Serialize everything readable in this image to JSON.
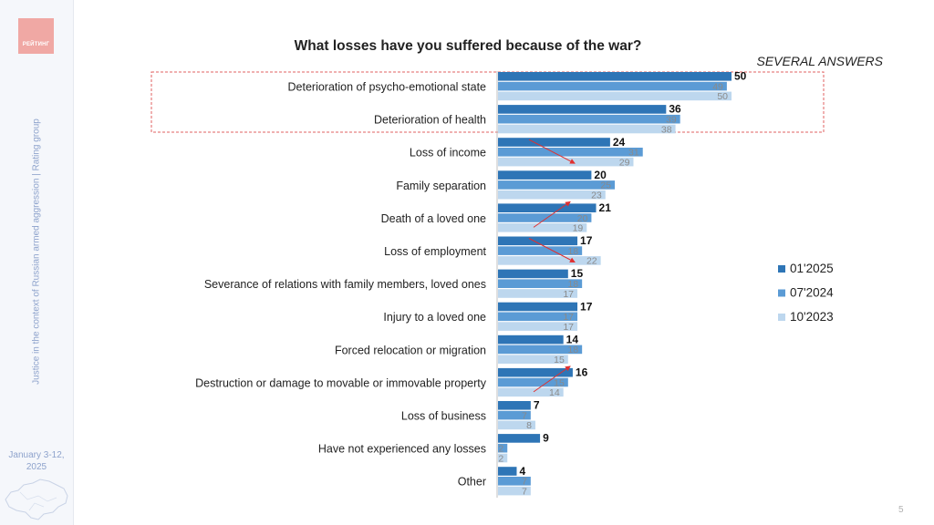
{
  "sidebar": {
    "logo_text": "РЕЙТИНГ",
    "vertical_caption": "Justice in the context of Russian armed aggression | Rating group",
    "date": "January 3-12, 2025",
    "map_icon": "ukraine-map-icon"
  },
  "page_number": "5",
  "colors": {
    "series_2025": "#2e75b6",
    "series_2024": "#5b9bd5",
    "series_2023": "#bdd7ee",
    "highlight_box": "#e06060",
    "arrow": "#e03030"
  },
  "chart_data": {
    "type": "bar",
    "orientation": "horizontal",
    "title": "What losses have you suffered because of the war?",
    "subtitle": "SEVERAL ANSWERS",
    "categories": [
      "Deterioration of psycho-emotional state",
      "Deterioration of health",
      "Loss of income",
      "Family separation",
      "Death of a loved one",
      "Loss of employment",
      "Severance of relations with family members, loved ones",
      "Injury to a loved one",
      "Forced relocation or migration",
      "Destruction or damage to movable or immovable property",
      "Loss of business",
      "Have not experienced any losses",
      "Other"
    ],
    "series": [
      {
        "name": "01'2025",
        "values": [
          50,
          36,
          24,
          20,
          21,
          17,
          15,
          17,
          14,
          16,
          7,
          9,
          4
        ]
      },
      {
        "name": "07'2024",
        "values": [
          49,
          39,
          31,
          25,
          20,
          18,
          18,
          17,
          18,
          15,
          7,
          2,
          7
        ]
      },
      {
        "name": "10'2023",
        "values": [
          50,
          38,
          29,
          23,
          19,
          22,
          17,
          17,
          15,
          14,
          8,
          2,
          7
        ]
      }
    ],
    "xlim": [
      0,
      60
    ],
    "legend_position": "right",
    "grid": false,
    "highlighted_categories": [
      "Deterioration of psycho-emotional state",
      "Deterioration of health"
    ],
    "trend_arrows": [
      {
        "category": "Loss of income",
        "direction": "down"
      },
      {
        "category": "Death of a loved one",
        "direction": "up"
      },
      {
        "category": "Loss of employment",
        "direction": "down"
      },
      {
        "category": "Destruction or damage to movable or immovable property",
        "direction": "up"
      }
    ]
  }
}
